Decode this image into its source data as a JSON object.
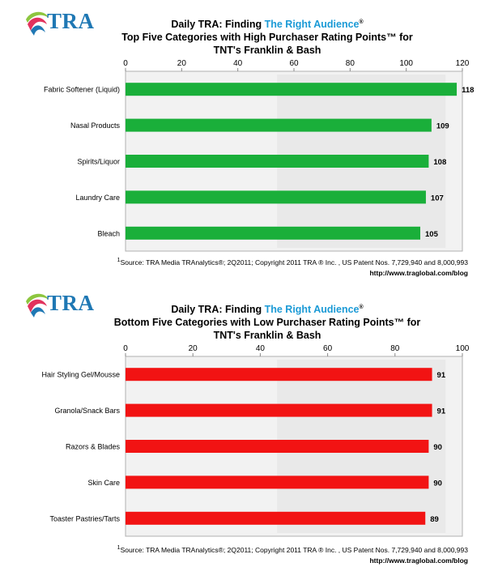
{
  "brand": {
    "logo_text": "TRA"
  },
  "chart_data": [
    {
      "type": "bar",
      "orientation": "horizontal",
      "title_prefix": "Daily TRA: Finding ",
      "title_highlight": "The Right Audience",
      "title_mark": "®",
      "title_line2": "Top Five Categories with High Purchaser Rating Points™ for",
      "title_line3": "TNT's Franklin & Bash",
      "categories": [
        "Fabric Softener (Liquid)",
        "Nasal Products",
        "Spirits/Liquor",
        "Laundry Care",
        "Bleach"
      ],
      "values": [
        118,
        109,
        108,
        107,
        105
      ],
      "xlim": [
        0,
        120
      ],
      "ticks": [
        0,
        20,
        40,
        60,
        80,
        100,
        120
      ],
      "bar_color": "#1aaf3a",
      "axis_position": "top",
      "footnote": "Source:  TRA Media TRAnalytics®; 2Q2011; Copyright 2011 TRA ® Inc. , US Patent Nos. 7,729,940 and 8,000,993",
      "footnote_mark": "1",
      "url": "http://www.traglobal.com/blog"
    },
    {
      "type": "bar",
      "orientation": "horizontal",
      "title_prefix": "Daily TRA: Finding ",
      "title_highlight": "The Right Audience",
      "title_mark": "®",
      "title_line2": "Bottom Five Categories with Low Purchaser Rating Points™ for",
      "title_line3": "TNT's Franklin & Bash",
      "categories": [
        "Hair Styling Gel/Mousse",
        "Granola/Snack Bars",
        "Razors & Blades",
        "Skin Care",
        "Toaster Pastries/Tarts"
      ],
      "values": [
        91,
        91,
        90,
        90,
        89
      ],
      "xlim": [
        0,
        100
      ],
      "ticks": [
        0,
        20,
        40,
        60,
        80,
        100
      ],
      "bar_color": "#f21313",
      "axis_position": "top",
      "footnote": "Source:  TRA Media TRAnalytics®; 2Q2011; Copyright 2011 TRA ® Inc. , US Patent Nos. 7,729,940 and 8,000,993",
      "footnote_mark": "1",
      "url": "http://www.traglobal.com/blog"
    }
  ]
}
